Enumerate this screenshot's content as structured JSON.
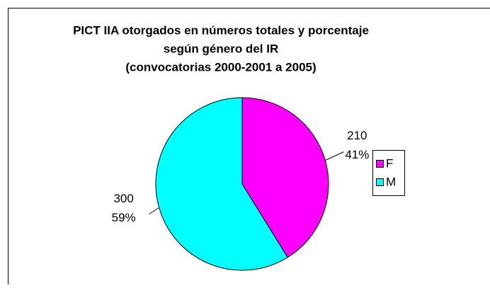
{
  "chart_data": {
    "type": "pie",
    "title": [
      "PICT IIA otorgados en números totales y porcentaje",
      "según género del IR",
      "(convocatorias 2000-2001 a 2005)"
    ],
    "categories": [
      "F",
      "M"
    ],
    "values": [
      210,
      300
    ],
    "percentages": [
      41,
      59
    ],
    "percentage_labels": [
      "41%",
      "59%"
    ],
    "colors": [
      "#ff00ff",
      "#00ffff"
    ],
    "legend": "right"
  }
}
